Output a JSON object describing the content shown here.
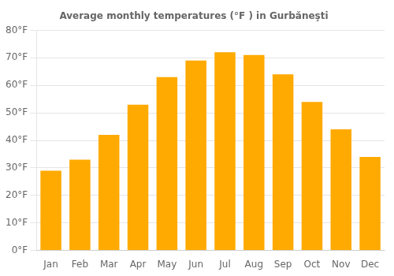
{
  "chart_data": {
    "type": "bar",
    "title": "Average monthly temperatures (°F ) in Gurbăneşti",
    "categories": [
      "Jan",
      "Feb",
      "Mar",
      "Apr",
      "May",
      "Jun",
      "Jul",
      "Aug",
      "Sep",
      "Oct",
      "Nov",
      "Dec"
    ],
    "values": [
      29,
      33,
      42,
      53,
      63,
      69,
      72,
      71,
      64,
      54,
      44,
      34
    ],
    "color": "#FFAA00",
    "ylim": [
      0,
      80
    ],
    "yticks": [
      {
        "value": 0,
        "label": "0°F"
      },
      {
        "value": 10,
        "label": "10°F"
      },
      {
        "value": 20,
        "label": "20°F"
      },
      {
        "value": 30,
        "label": "30°F"
      },
      {
        "value": 40,
        "label": "40°F"
      },
      {
        "value": 50,
        "label": "50°F"
      },
      {
        "value": 60,
        "label": "60°F"
      },
      {
        "value": 70,
        "label": "70°F"
      },
      {
        "value": 80,
        "label": "80°F"
      }
    ],
    "grid": true
  }
}
